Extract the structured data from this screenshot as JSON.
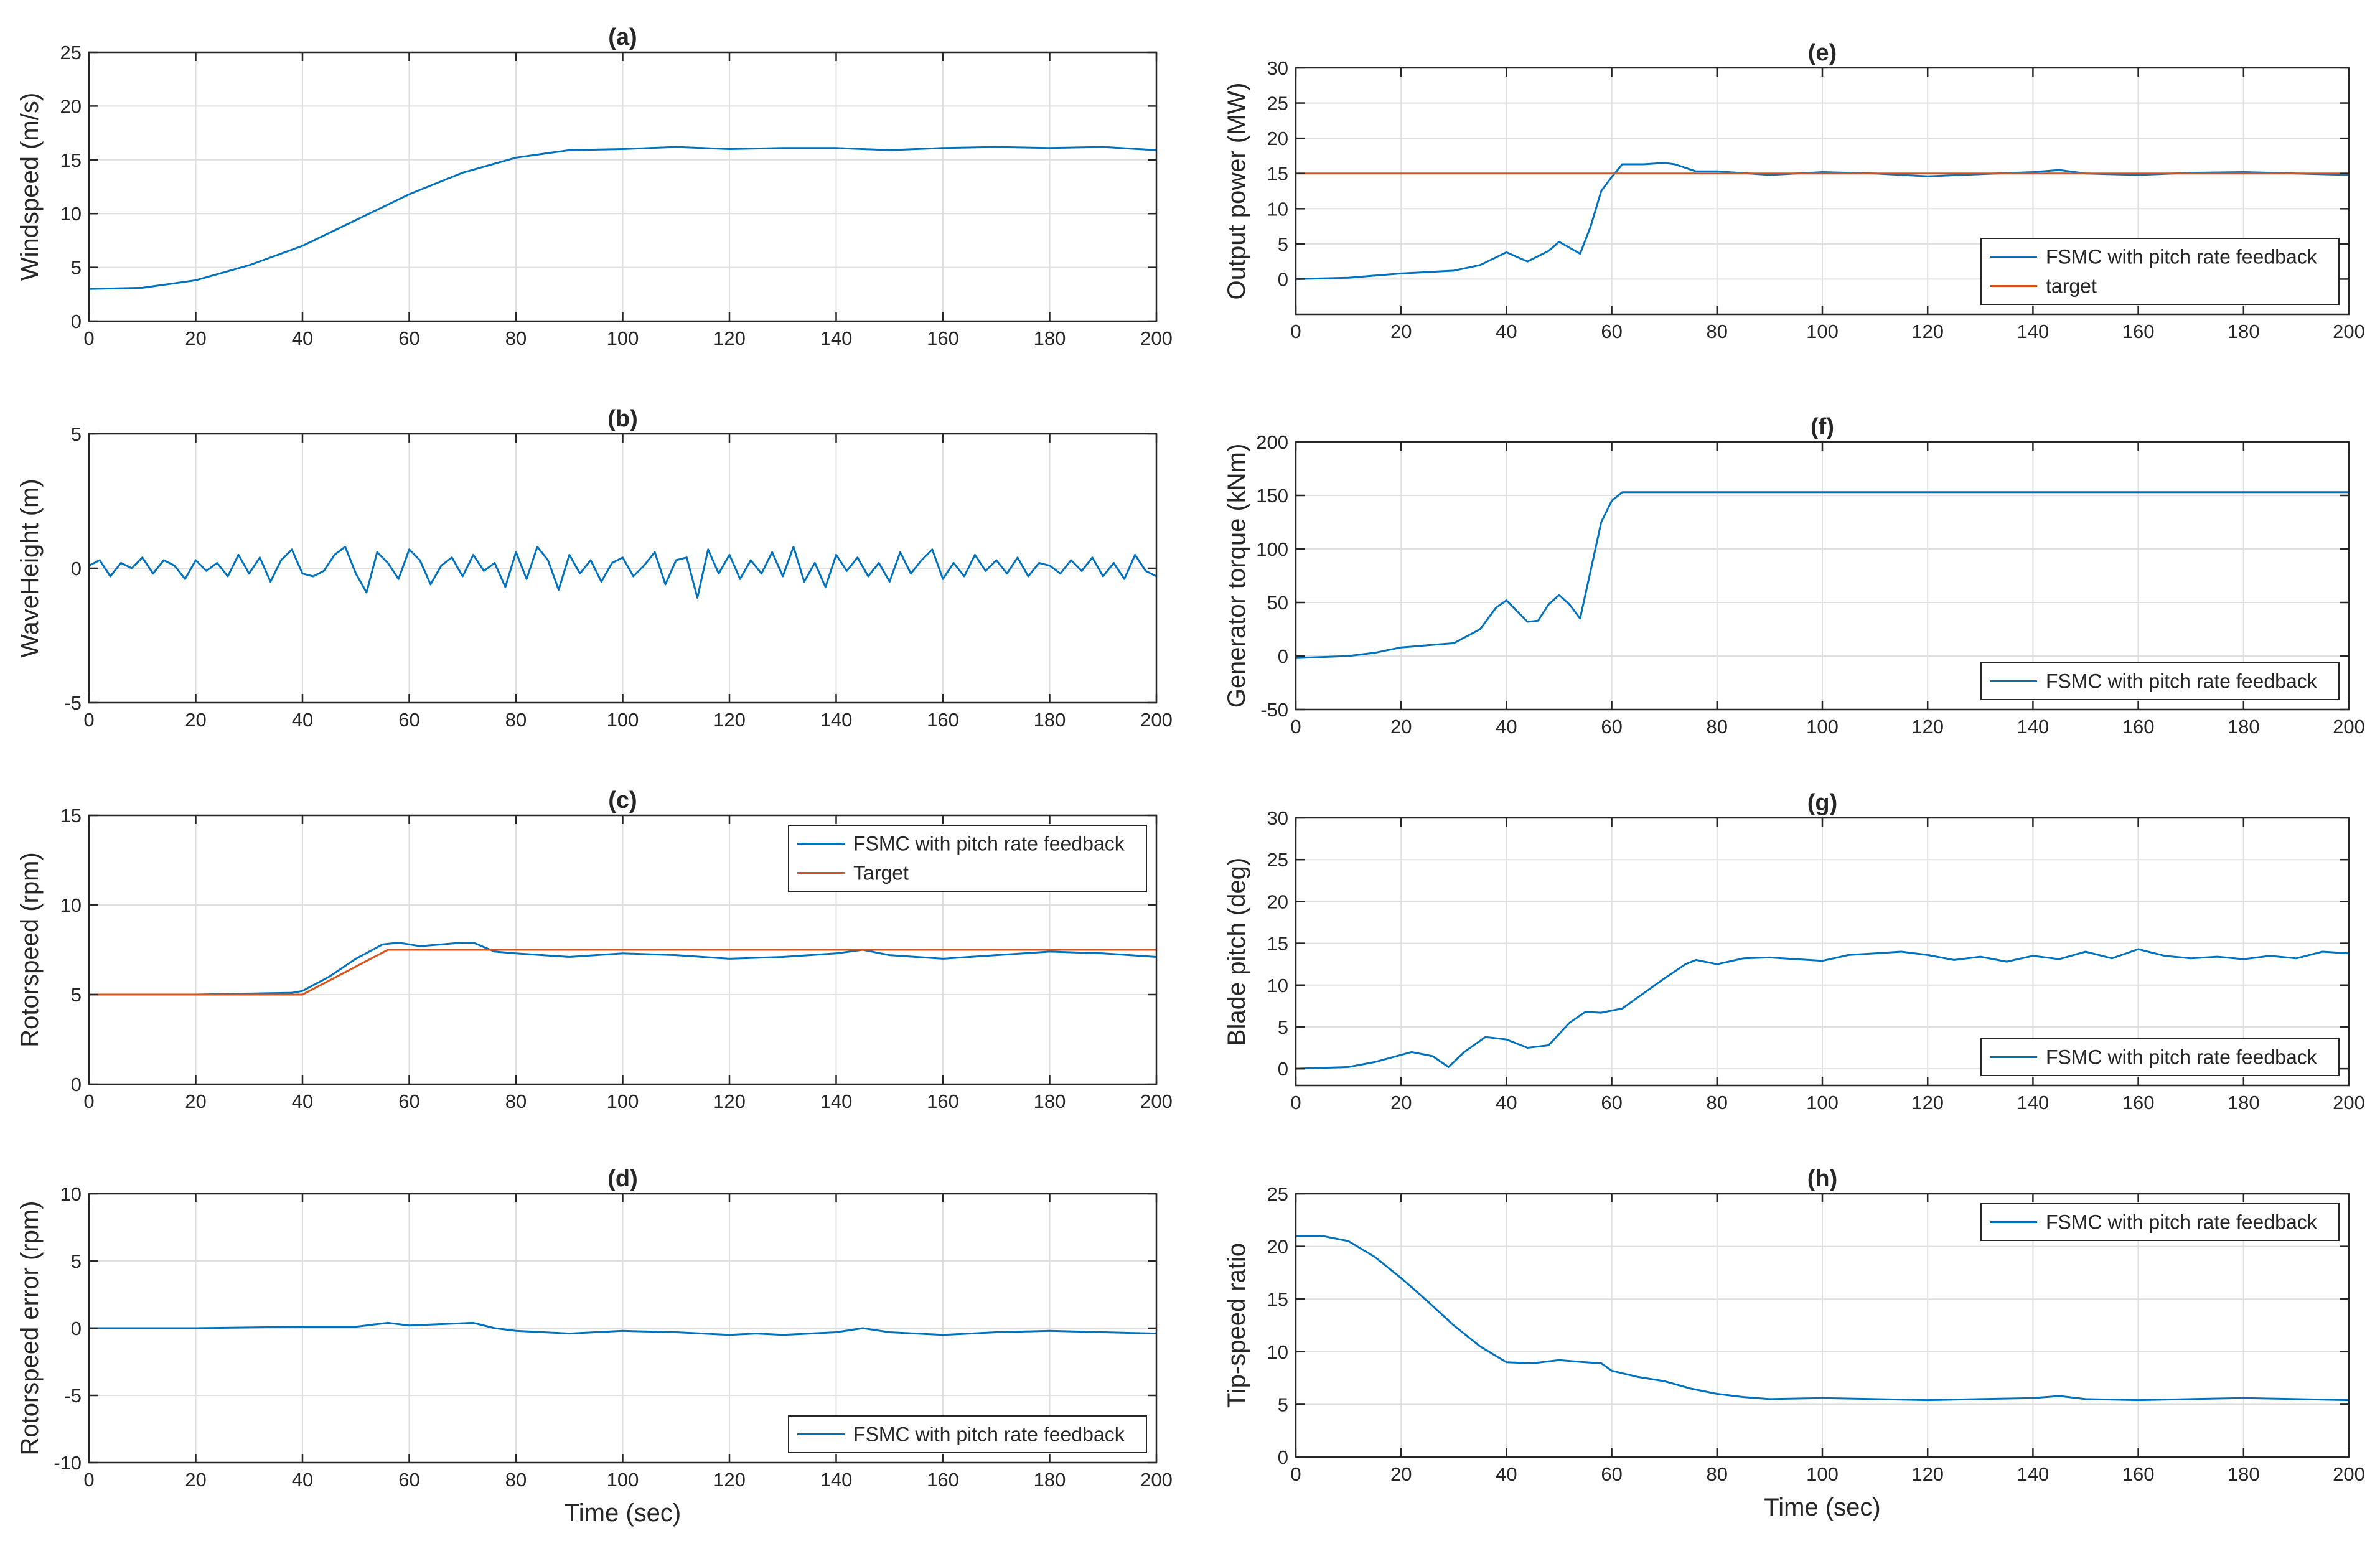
{
  "figure": {
    "colors": {
      "series": "#0072BD",
      "target": "#D95319",
      "grid": "#DFDFDF",
      "axis": "#262626"
    }
  },
  "chart_data": [
    {
      "id": "a",
      "type": "line",
      "title": "(a)",
      "xlabel": "",
      "ylabel": "Windspeed (m/s)",
      "xlim": [
        0,
        200
      ],
      "ylim": [
        0,
        25
      ],
      "xticks": [
        0,
        20,
        40,
        60,
        80,
        100,
        120,
        140,
        160,
        180,
        200
      ],
      "yticks": [
        0,
        5,
        10,
        15,
        20,
        25
      ],
      "grid": true,
      "legend": null,
      "series": [
        {
          "name": "Windspeed",
          "color": "#0072BD",
          "x": [
            0,
            10,
            20,
            30,
            40,
            50,
            60,
            70,
            80,
            90,
            100,
            110,
            120,
            130,
            140,
            150,
            160,
            170,
            180,
            190,
            200
          ],
          "y": [
            3.0,
            3.1,
            3.8,
            5.2,
            7.0,
            9.4,
            11.8,
            13.8,
            15.2,
            15.9,
            16.0,
            16.2,
            16.0,
            16.1,
            16.1,
            15.9,
            16.1,
            16.2,
            16.1,
            16.2,
            15.9
          ]
        }
      ]
    },
    {
      "id": "b",
      "type": "line",
      "title": "(b)",
      "xlabel": "",
      "ylabel": "WaveHeight (m)",
      "xlim": [
        0,
        200
      ],
      "ylim": [
        -5,
        5
      ],
      "xticks": [
        0,
        20,
        40,
        60,
        80,
        100,
        120,
        140,
        160,
        180,
        200
      ],
      "yticks": [
        -5,
        0,
        5
      ],
      "grid": true,
      "legend": null,
      "series": [
        {
          "name": "WaveHeight",
          "color": "#0072BD",
          "x": [
            0,
            2,
            4,
            6,
            8,
            10,
            12,
            14,
            16,
            18,
            20,
            22,
            24,
            26,
            28,
            30,
            32,
            34,
            36,
            38,
            40,
            42,
            44,
            46,
            48,
            50,
            52,
            54,
            56,
            58,
            60,
            62,
            64,
            66,
            68,
            70,
            72,
            74,
            76,
            78,
            80,
            82,
            84,
            86,
            88,
            90,
            92,
            94,
            96,
            98,
            100,
            102,
            104,
            106,
            108,
            110,
            112,
            114,
            116,
            118,
            120,
            122,
            124,
            126,
            128,
            130,
            132,
            134,
            136,
            138,
            140,
            142,
            144,
            146,
            148,
            150,
            152,
            154,
            156,
            158,
            160,
            162,
            164,
            166,
            168,
            170,
            172,
            174,
            176,
            178,
            180,
            182,
            184,
            186,
            188,
            190,
            192,
            194,
            196,
            198,
            200
          ],
          "y": [
            0.1,
            0.3,
            -0.3,
            0.2,
            0.0,
            0.4,
            -0.2,
            0.3,
            0.1,
            -0.4,
            0.3,
            -0.1,
            0.2,
            -0.3,
            0.5,
            -0.2,
            0.4,
            -0.5,
            0.3,
            0.7,
            -0.2,
            -0.3,
            -0.1,
            0.5,
            0.8,
            -0.2,
            -0.9,
            0.6,
            0.2,
            -0.4,
            0.7,
            0.3,
            -0.6,
            0.1,
            0.4,
            -0.3,
            0.5,
            -0.1,
            0.2,
            -0.7,
            0.6,
            -0.4,
            0.8,
            0.3,
            -0.8,
            0.5,
            -0.2,
            0.3,
            -0.5,
            0.2,
            0.4,
            -0.3,
            0.1,
            0.6,
            -0.6,
            0.3,
            0.4,
            -1.1,
            0.7,
            -0.2,
            0.5,
            -0.4,
            0.3,
            -0.2,
            0.6,
            -0.3,
            0.8,
            -0.5,
            0.2,
            -0.7,
            0.5,
            -0.1,
            0.4,
            -0.3,
            0.2,
            -0.5,
            0.6,
            -0.2,
            0.3,
            0.7,
            -0.4,
            0.2,
            -0.3,
            0.5,
            -0.1,
            0.3,
            -0.2,
            0.4,
            -0.3,
            0.2,
            0.1,
            -0.2,
            0.3,
            -0.1,
            0.4,
            -0.3,
            0.2,
            -0.4,
            0.5,
            -0.1,
            -0.3
          ]
        }
      ]
    },
    {
      "id": "c",
      "type": "line",
      "title": "(c)",
      "xlabel": "",
      "ylabel": "Rotorspeed (rpm)",
      "xlim": [
        0,
        200
      ],
      "ylim": [
        0,
        15
      ],
      "xticks": [
        0,
        20,
        40,
        60,
        80,
        100,
        120,
        140,
        160,
        180,
        200
      ],
      "yticks": [
        0,
        5,
        10,
        15
      ],
      "grid": true,
      "legend": "top-right",
      "series": [
        {
          "name": "FSMC with pitch rate feedback",
          "color": "#0072BD",
          "x": [
            0,
            20,
            38,
            40,
            45,
            50,
            55,
            58,
            62,
            66,
            70,
            72,
            76,
            80,
            90,
            100,
            110,
            120,
            130,
            140,
            145,
            150,
            160,
            170,
            180,
            190,
            200
          ],
          "y": [
            5.0,
            5.0,
            5.1,
            5.2,
            6.0,
            7.0,
            7.8,
            7.9,
            7.7,
            7.8,
            7.9,
            7.9,
            7.4,
            7.3,
            7.1,
            7.3,
            7.2,
            7.0,
            7.1,
            7.3,
            7.5,
            7.2,
            7.0,
            7.2,
            7.4,
            7.3,
            7.1
          ]
        },
        {
          "name": "Target",
          "color": "#D95319",
          "x": [
            0,
            40,
            56,
            200
          ],
          "y": [
            5.0,
            5.0,
            7.5,
            7.5
          ]
        }
      ]
    },
    {
      "id": "d",
      "type": "line",
      "title": "(d)",
      "xlabel": "Time (sec)",
      "ylabel": "Rotorspeed error (rpm)",
      "xlim": [
        0,
        200
      ],
      "ylim": [
        -10,
        10
      ],
      "xticks": [
        0,
        20,
        40,
        60,
        80,
        100,
        120,
        140,
        160,
        180,
        200
      ],
      "yticks": [
        -10,
        -5,
        0,
        5,
        10
      ],
      "grid": true,
      "legend": "bottom-right",
      "series": [
        {
          "name": "FSMC with pitch rate feedback",
          "color": "#0072BD",
          "x": [
            0,
            20,
            40,
            50,
            56,
            60,
            66,
            72,
            76,
            80,
            90,
            100,
            110,
            120,
            125,
            130,
            140,
            145,
            150,
            160,
            170,
            180,
            190,
            200
          ],
          "y": [
            0.0,
            0.0,
            0.1,
            0.1,
            0.4,
            0.2,
            0.3,
            0.4,
            0.0,
            -0.2,
            -0.4,
            -0.2,
            -0.3,
            -0.5,
            -0.4,
            -0.5,
            -0.3,
            0.0,
            -0.3,
            -0.5,
            -0.3,
            -0.2,
            -0.3,
            -0.4
          ]
        }
      ]
    },
    {
      "id": "e",
      "type": "line",
      "title": "(e)",
      "xlabel": "",
      "ylabel": "Output power (MW)",
      "xlim": [
        0,
        200
      ],
      "ylim": [
        -5,
        30
      ],
      "xticks": [
        0,
        20,
        40,
        60,
        80,
        100,
        120,
        140,
        160,
        180,
        200
      ],
      "yticks": [
        0,
        5,
        10,
        15,
        20,
        25,
        30
      ],
      "grid": true,
      "legend": "bottom-right",
      "series": [
        {
          "name": "FSMC with pitch rate feedback",
          "color": "#0072BD",
          "x": [
            0,
            10,
            20,
            30,
            35,
            40,
            44,
            48,
            50,
            54,
            56,
            58,
            60,
            62,
            66,
            70,
            72,
            76,
            80,
            90,
            100,
            110,
            120,
            130,
            140,
            145,
            150,
            160,
            170,
            180,
            190,
            200
          ],
          "y": [
            0.0,
            0.2,
            0.8,
            1.2,
            2.0,
            3.8,
            2.5,
            4.0,
            5.3,
            3.6,
            7.5,
            12.5,
            14.5,
            16.3,
            16.3,
            16.5,
            16.3,
            15.3,
            15.3,
            14.8,
            15.2,
            15.0,
            14.6,
            14.9,
            15.2,
            15.5,
            15.0,
            14.8,
            15.1,
            15.2,
            15.0,
            14.8
          ]
        },
        {
          "name": "target",
          "color": "#D95319",
          "x": [
            0,
            200
          ],
          "y": [
            15,
            15
          ]
        }
      ]
    },
    {
      "id": "f",
      "type": "line",
      "title": "(f)",
      "xlabel": "",
      "ylabel": "Generator torque (kNm)",
      "xlim": [
        0,
        200
      ],
      "ylim": [
        -50,
        200
      ],
      "xticks": [
        0,
        20,
        40,
        60,
        80,
        100,
        120,
        140,
        160,
        180,
        200
      ],
      "yticks": [
        -50,
        0,
        50,
        100,
        150,
        200
      ],
      "grid": true,
      "legend": "bottom-right",
      "series": [
        {
          "name": "FSMC with pitch rate feedback",
          "color": "#0072BD",
          "x": [
            0,
            10,
            15,
            20,
            25,
            30,
            35,
            38,
            40,
            44,
            46,
            48,
            50,
            52,
            54,
            56,
            58,
            60,
            62,
            80,
            100,
            120,
            140,
            160,
            180,
            200
          ],
          "y": [
            -2,
            0,
            3,
            8,
            10,
            12,
            25,
            45,
            52,
            32,
            33,
            48,
            57,
            48,
            35,
            80,
            125,
            145,
            153,
            153,
            153,
            153,
            153,
            153,
            153,
            153
          ]
        }
      ]
    },
    {
      "id": "g",
      "type": "line",
      "title": "(g)",
      "xlabel": "",
      "ylabel": "Blade pitch (deg)",
      "xlim": [
        0,
        200
      ],
      "ylim": [
        -2,
        30
      ],
      "xticks": [
        0,
        20,
        40,
        60,
        80,
        100,
        120,
        140,
        160,
        180,
        200
      ],
      "yticks": [
        0,
        5,
        10,
        15,
        20,
        25,
        30
      ],
      "grid": true,
      "legend": "bottom-right",
      "series": [
        {
          "name": "FSMC with pitch rate feedback",
          "color": "#0072BD",
          "x": [
            0,
            10,
            15,
            22,
            26,
            29,
            32,
            36,
            40,
            44,
            48,
            52,
            55,
            58,
            62,
            66,
            70,
            74,
            76,
            80,
            85,
            90,
            95,
            100,
            105,
            110,
            115,
            120,
            125,
            130,
            135,
            140,
            145,
            150,
            155,
            160,
            165,
            170,
            175,
            180,
            185,
            190,
            195,
            200
          ],
          "y": [
            0.0,
            0.2,
            0.8,
            2.0,
            1.5,
            0.2,
            2.0,
            3.8,
            3.5,
            2.5,
            2.8,
            5.5,
            6.8,
            6.7,
            7.2,
            9.0,
            10.8,
            12.5,
            13.0,
            12.5,
            13.2,
            13.3,
            13.1,
            12.9,
            13.6,
            13.8,
            14.0,
            13.6,
            13.0,
            13.4,
            12.8,
            13.5,
            13.1,
            14.0,
            13.2,
            14.3,
            13.5,
            13.2,
            13.4,
            13.1,
            13.5,
            13.2,
            14.0,
            13.8
          ]
        }
      ]
    },
    {
      "id": "h",
      "type": "line",
      "title": "(h)",
      "xlabel": "Time (sec)",
      "ylabel": "Tip-speed ratio",
      "xlim": [
        0,
        200
      ],
      "ylim": [
        0,
        25
      ],
      "xticks": [
        0,
        20,
        40,
        60,
        80,
        100,
        120,
        140,
        160,
        180,
        200
      ],
      "yticks": [
        0,
        5,
        10,
        15,
        20,
        25
      ],
      "grid": true,
      "legend": "top-right",
      "series": [
        {
          "name": "FSMC with pitch rate feedback",
          "color": "#0072BD",
          "x": [
            0,
            5,
            10,
            15,
            20,
            25,
            30,
            35,
            40,
            45,
            50,
            55,
            58,
            60,
            65,
            70,
            75,
            80,
            85,
            90,
            100,
            110,
            120,
            130,
            140,
            145,
            150,
            160,
            170,
            180,
            190,
            200
          ],
          "y": [
            21.0,
            21.0,
            20.5,
            19.0,
            17.0,
            14.8,
            12.5,
            10.5,
            9.0,
            8.9,
            9.2,
            9.0,
            8.9,
            8.2,
            7.6,
            7.2,
            6.5,
            6.0,
            5.7,
            5.5,
            5.6,
            5.5,
            5.4,
            5.5,
            5.6,
            5.8,
            5.5,
            5.4,
            5.5,
            5.6,
            5.5,
            5.4
          ]
        }
      ]
    }
  ]
}
